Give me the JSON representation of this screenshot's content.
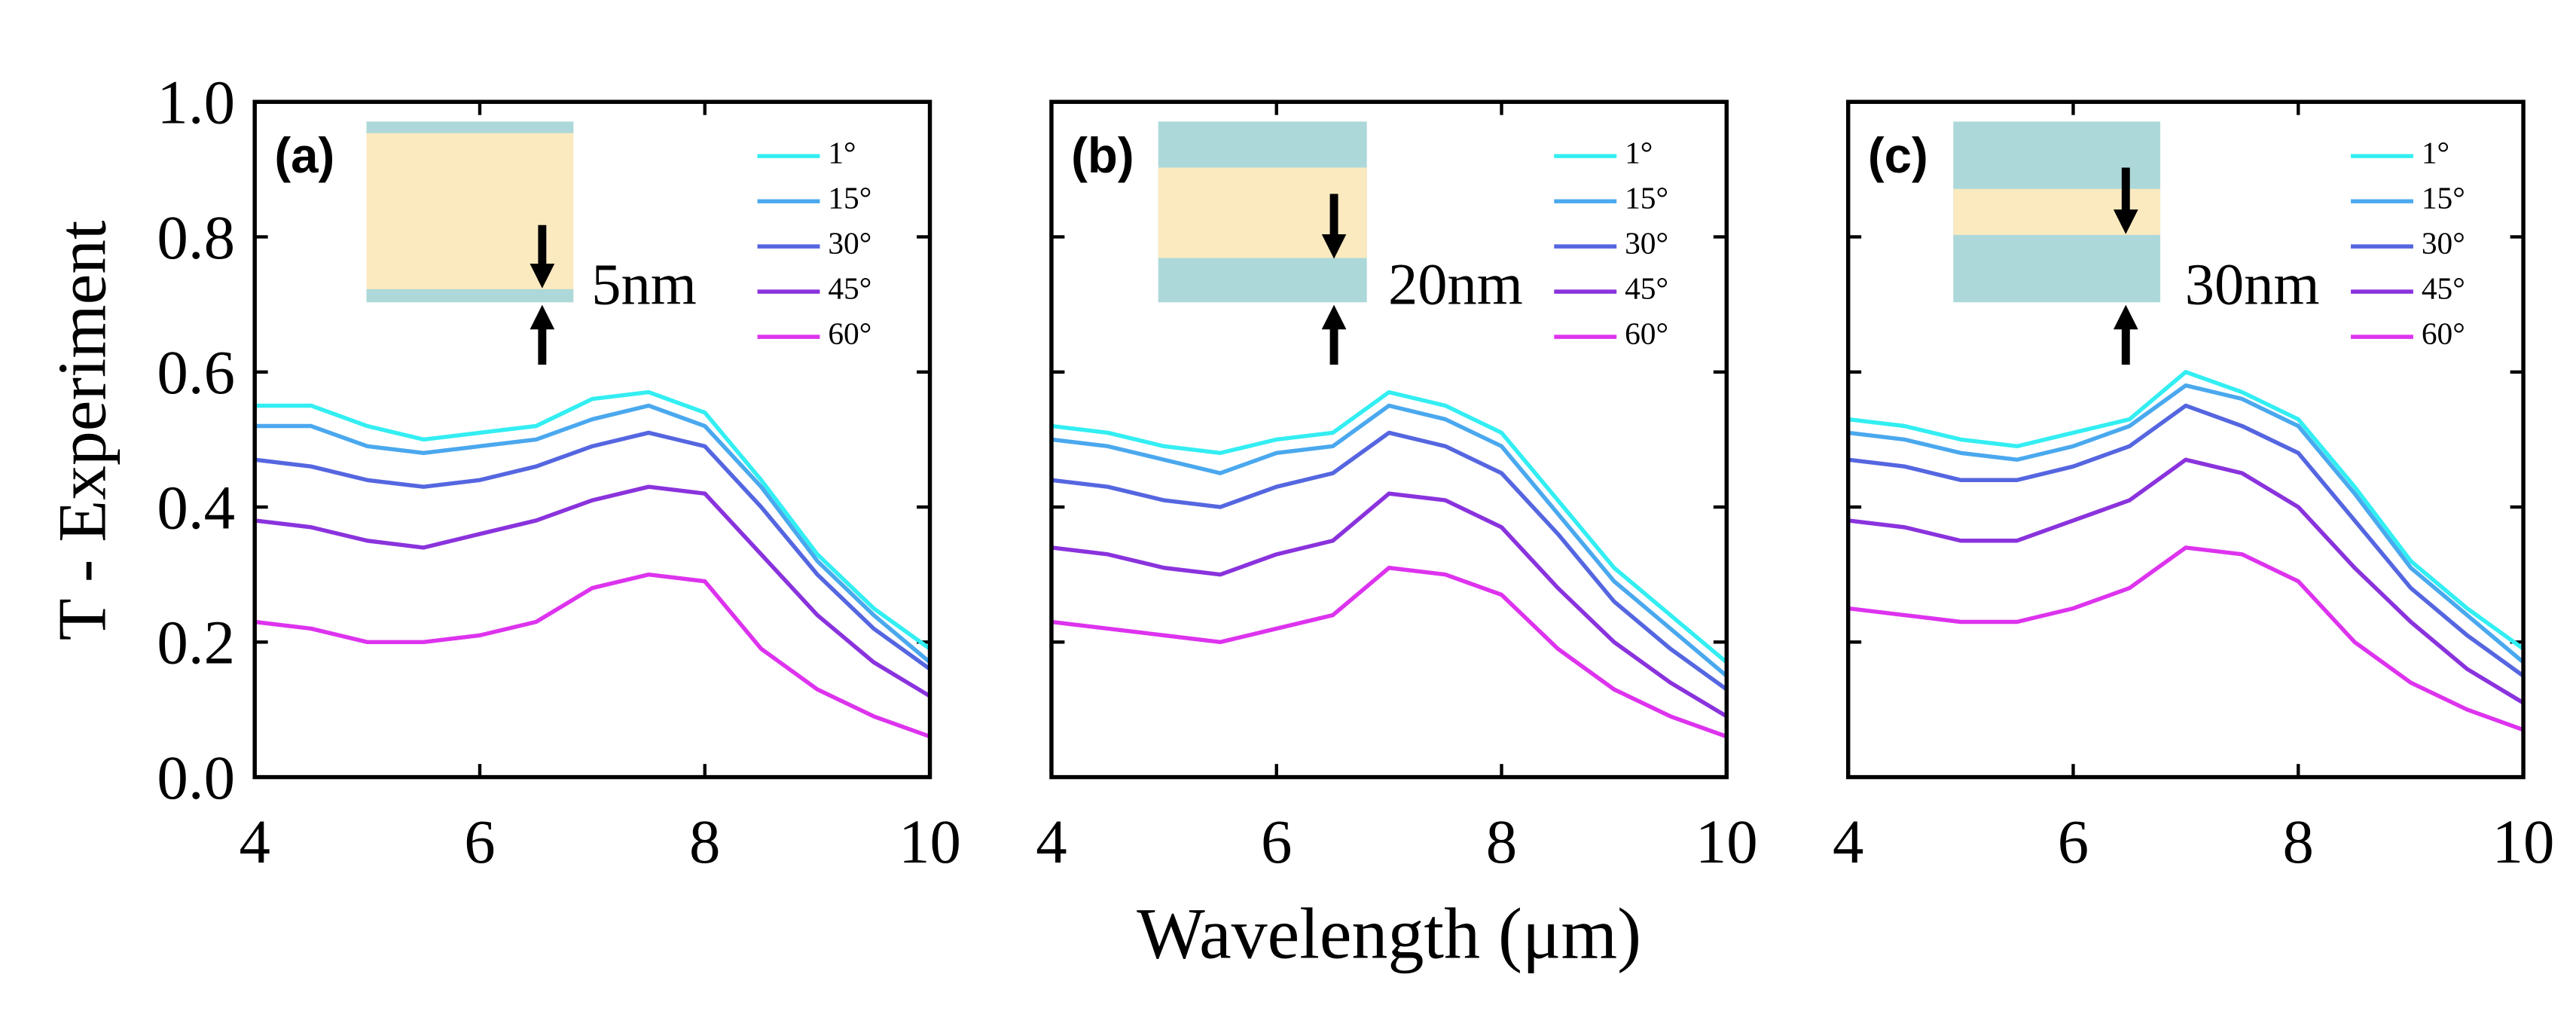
{
  "chart_data": [
    {
      "type": "line",
      "panel_label": "(a)",
      "annotation": "5nm",
      "y_label": "T - Experiment",
      "x": [
        4,
        4.5,
        5,
        5.5,
        6,
        6.5,
        7,
        7.5,
        8,
        8.5,
        9,
        9.5,
        10
      ],
      "xlim": [
        4,
        10
      ],
      "xticks": [
        4,
        6,
        8,
        10
      ],
      "ylim": [
        0,
        1
      ],
      "yticks": [
        {
          "value": 0,
          "label": "0.0"
        },
        0.2,
        0.4,
        0.6,
        0.8,
        {
          "value": 1,
          "label": "1.0"
        }
      ],
      "legend": "upper right",
      "series": [
        {
          "name": "1°",
          "color": "#33eef2",
          "values": [
            0.55,
            0.55,
            0.52,
            0.5,
            0.51,
            0.52,
            0.56,
            0.57,
            0.54,
            0.44,
            0.33,
            0.25,
            0.19
          ]
        },
        {
          "name": "15°",
          "color": "#4aa8ee",
          "values": [
            0.52,
            0.52,
            0.49,
            0.48,
            0.49,
            0.5,
            0.53,
            0.55,
            0.52,
            0.43,
            0.32,
            0.24,
            0.17
          ]
        },
        {
          "name": "30°",
          "color": "#5566e0",
          "values": [
            0.47,
            0.46,
            0.44,
            0.43,
            0.44,
            0.46,
            0.49,
            0.51,
            0.49,
            0.4,
            0.3,
            0.22,
            0.16
          ]
        },
        {
          "name": "45°",
          "color": "#8a33dd",
          "values": [
            0.38,
            0.37,
            0.35,
            0.34,
            0.36,
            0.38,
            0.41,
            0.43,
            0.42,
            0.33,
            0.24,
            0.17,
            0.12
          ]
        },
        {
          "name": "60°",
          "color": "#dd33ee",
          "values": [
            0.23,
            0.22,
            0.2,
            0.2,
            0.21,
            0.23,
            0.28,
            0.3,
            0.29,
            0.19,
            0.13,
            0.09,
            0.06
          ]
        }
      ]
    },
    {
      "type": "line",
      "panel_label": "(b)",
      "annotation": "20nm",
      "x_label": "Wavelength (μm)",
      "x": [
        4,
        4.5,
        5,
        5.5,
        6,
        6.5,
        7,
        7.5,
        8,
        8.5,
        9,
        9.5,
        10
      ],
      "xlim": [
        4,
        10
      ],
      "xticks": [
        4,
        6,
        8,
        10
      ],
      "ylim": [
        0,
        1
      ],
      "yticks": [
        0,
        0.2,
        0.4,
        0.6,
        0.8,
        1
      ],
      "legend": "upper right",
      "series": [
        {
          "name": "1°",
          "color": "#33eef2",
          "values": [
            0.52,
            0.51,
            0.49,
            0.48,
            0.5,
            0.51,
            0.57,
            0.55,
            0.51,
            0.41,
            0.31,
            0.24,
            0.17
          ]
        },
        {
          "name": "15°",
          "color": "#4aa8ee",
          "values": [
            0.5,
            0.49,
            0.47,
            0.45,
            0.48,
            0.49,
            0.55,
            0.53,
            0.49,
            0.39,
            0.29,
            0.22,
            0.15
          ]
        },
        {
          "name": "30°",
          "color": "#5566e0",
          "values": [
            0.44,
            0.43,
            0.41,
            0.4,
            0.43,
            0.45,
            0.51,
            0.49,
            0.45,
            0.36,
            0.26,
            0.19,
            0.13
          ]
        },
        {
          "name": "45°",
          "color": "#8a33dd",
          "values": [
            0.34,
            0.33,
            0.31,
            0.3,
            0.33,
            0.35,
            0.42,
            0.41,
            0.37,
            0.28,
            0.2,
            0.14,
            0.09
          ]
        },
        {
          "name": "60°",
          "color": "#dd33ee",
          "values": [
            0.23,
            0.22,
            0.21,
            0.2,
            0.22,
            0.24,
            0.31,
            0.3,
            0.27,
            0.19,
            0.13,
            0.09,
            0.06
          ]
        }
      ]
    },
    {
      "type": "line",
      "panel_label": "(c)",
      "annotation": "30nm",
      "x": [
        4,
        4.5,
        5,
        5.5,
        6,
        6.5,
        7,
        7.5,
        8,
        8.5,
        9,
        9.5,
        10
      ],
      "xlim": [
        4,
        10
      ],
      "xticks": [
        4,
        6,
        8,
        10
      ],
      "ylim": [
        0,
        1
      ],
      "yticks": [
        0,
        0.2,
        0.4,
        0.6,
        0.8,
        1
      ],
      "legend": "upper right",
      "series": [
        {
          "name": "1°",
          "color": "#33eef2",
          "values": [
            0.53,
            0.52,
            0.5,
            0.49,
            0.51,
            0.53,
            0.6,
            0.57,
            0.53,
            0.43,
            0.32,
            0.25,
            0.19
          ]
        },
        {
          "name": "15°",
          "color": "#4aa8ee",
          "values": [
            0.51,
            0.5,
            0.48,
            0.47,
            0.49,
            0.52,
            0.58,
            0.56,
            0.52,
            0.42,
            0.31,
            0.24,
            0.17
          ]
        },
        {
          "name": "30°",
          "color": "#5566e0",
          "values": [
            0.47,
            0.46,
            0.44,
            0.44,
            0.46,
            0.49,
            0.55,
            0.52,
            0.48,
            0.38,
            0.28,
            0.21,
            0.15
          ]
        },
        {
          "name": "45°",
          "color": "#8a33dd",
          "values": [
            0.38,
            0.37,
            0.35,
            0.35,
            0.38,
            0.41,
            0.47,
            0.45,
            0.4,
            0.31,
            0.23,
            0.16,
            0.11
          ]
        },
        {
          "name": "60°",
          "color": "#dd33ee",
          "values": [
            0.25,
            0.24,
            0.23,
            0.23,
            0.25,
            0.28,
            0.34,
            0.33,
            0.29,
            0.2,
            0.14,
            0.1,
            0.07
          ]
        }
      ]
    }
  ]
}
